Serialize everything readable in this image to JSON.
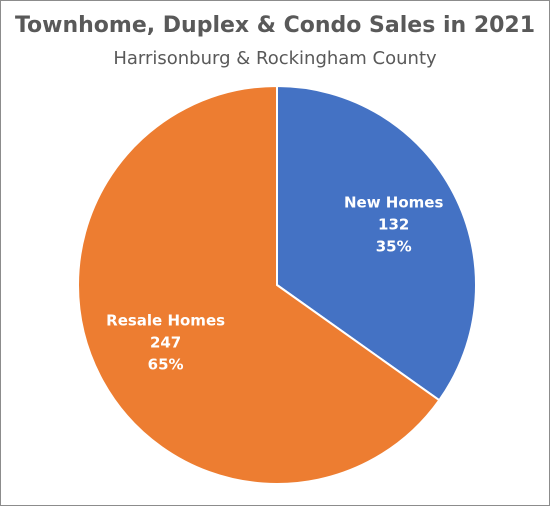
{
  "chart_data": {
    "type": "pie",
    "title": "Townhome, Duplex & Condo Sales in 2021",
    "subtitle": "Harrisonburg & Rockingham County",
    "slices": [
      {
        "name": "New Homes",
        "value": 132,
        "percent": "35%",
        "color": "#4472c4"
      },
      {
        "name": "Resale Homes",
        "value": 247,
        "percent": "65%",
        "color": "#ed7d31"
      }
    ],
    "start_angle": "12 o'clock",
    "direction": "clockwise",
    "slice_border_color": "#ffffff",
    "legend": "none"
  }
}
